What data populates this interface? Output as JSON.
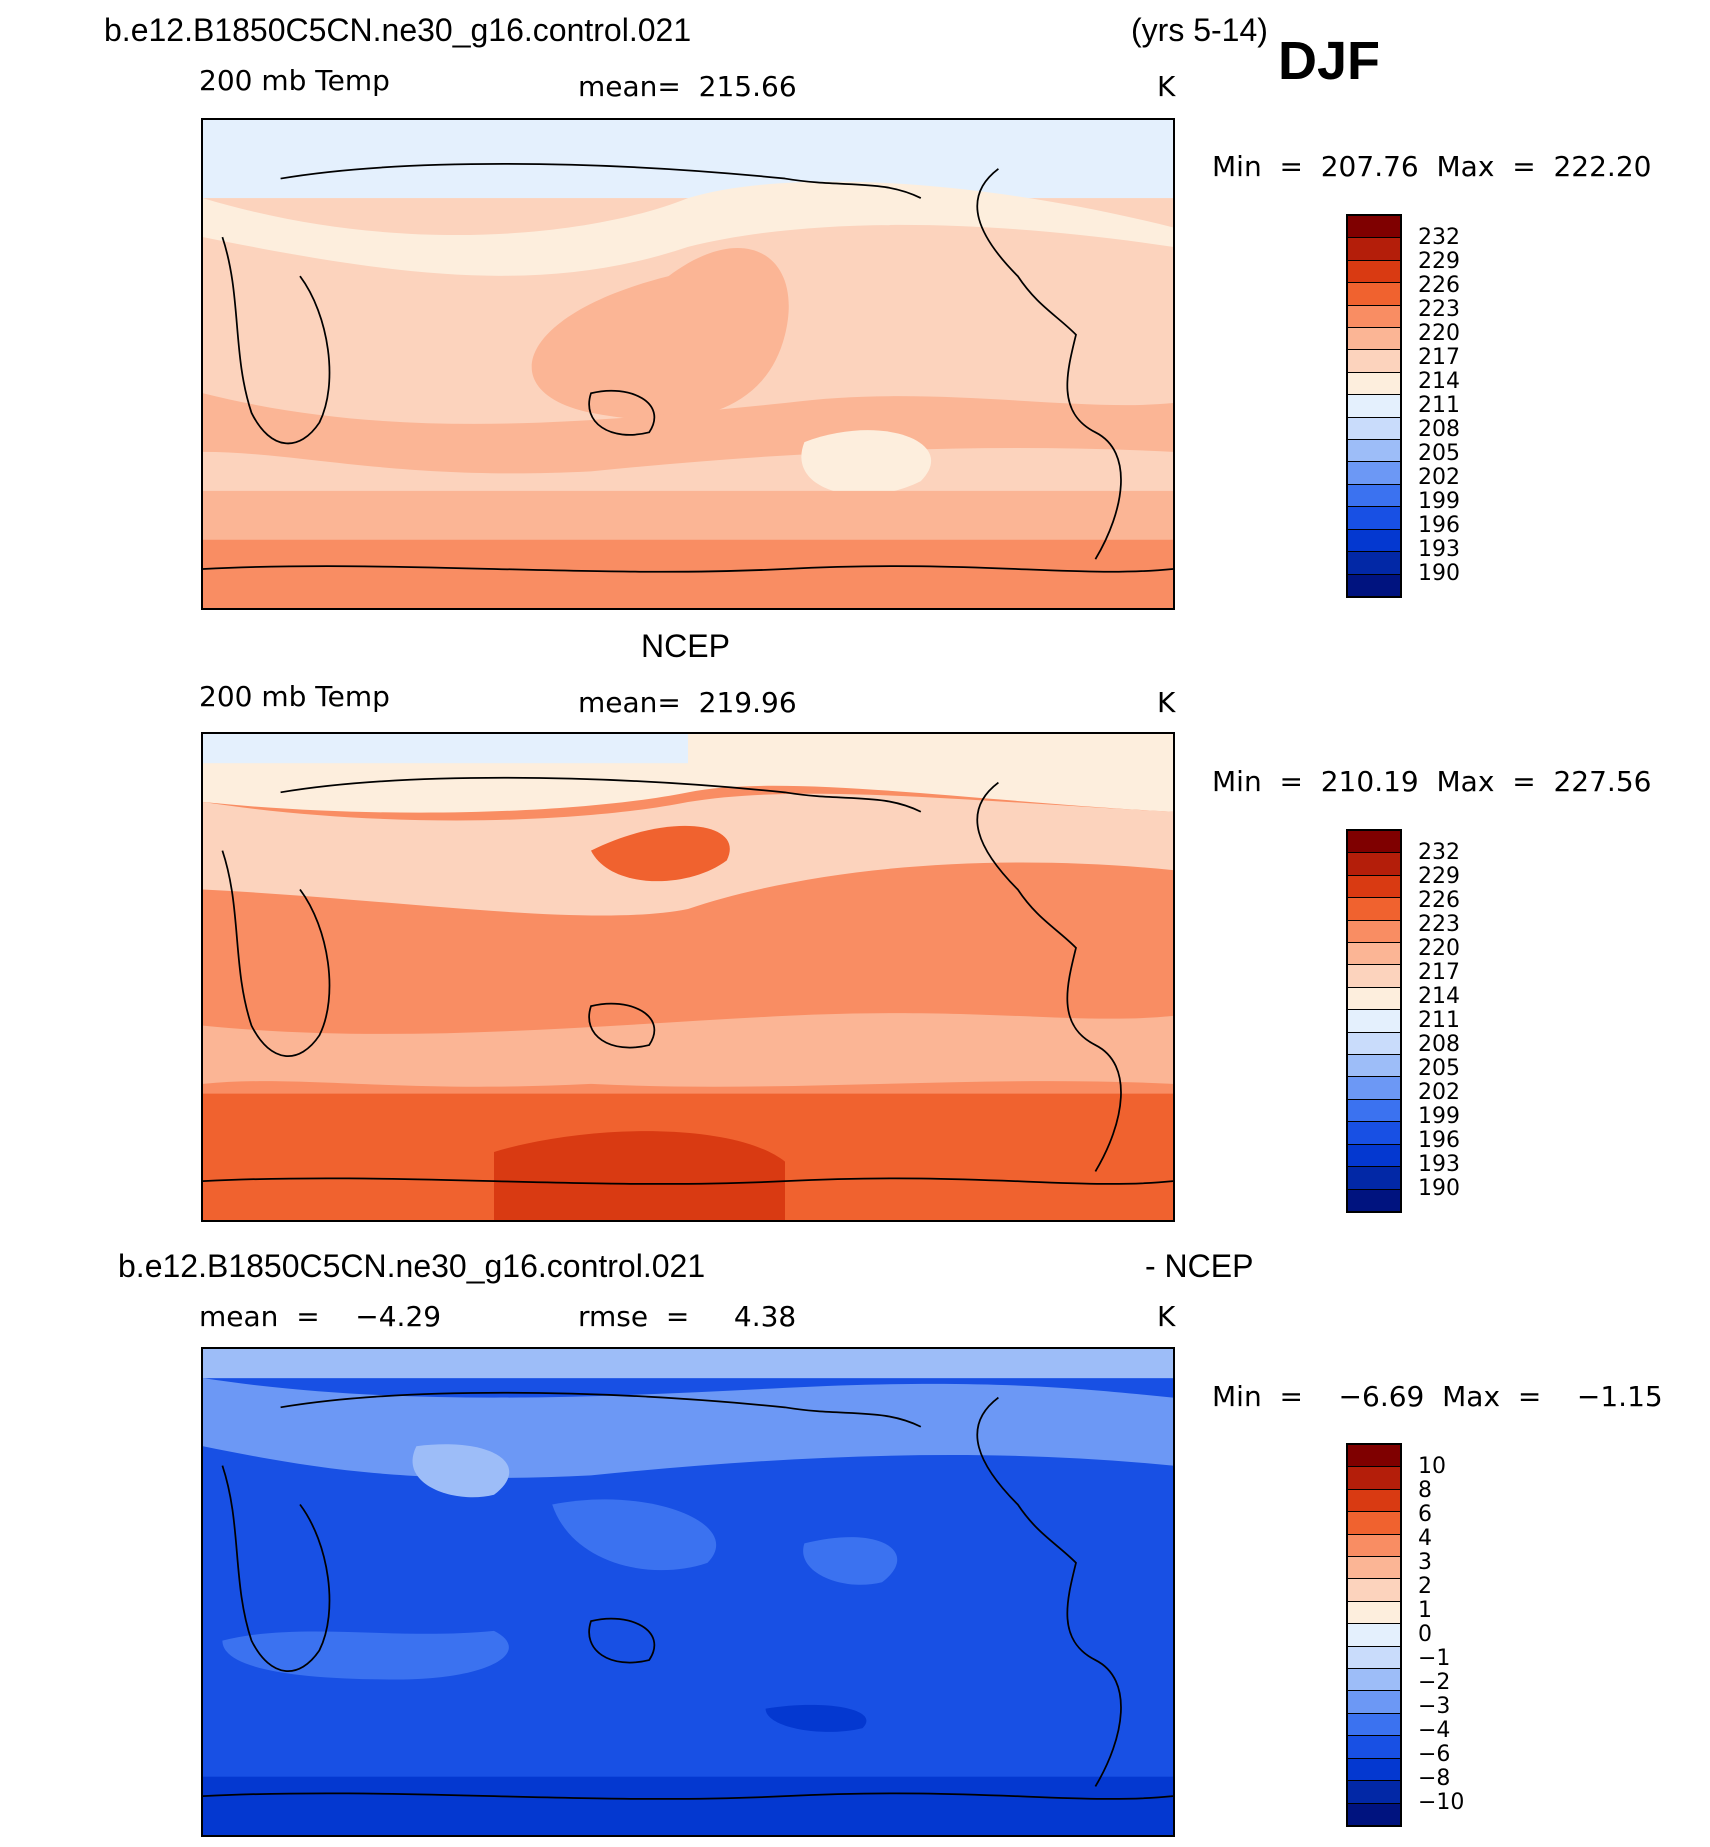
{
  "header": {
    "case_name": "b.e12.B1850C5CN.ne30_g16.control.021",
    "years": "(yrs 5-14)",
    "season": "DJF"
  },
  "colors": {
    "temp_scale": [
      "#00137f",
      "#0228a6",
      "#0438d0",
      "#1850e4",
      "#3b72f0",
      "#6c98f5",
      "#9dbdf8",
      "#c9dcfb",
      "#e4f0fd",
      "#fdeedd",
      "#fcd3bd",
      "#fbb595",
      "#f98d63",
      "#f0622f",
      "#d93a12",
      "#b41e0a",
      "#7f0000"
    ],
    "diff_scale": [
      "#00137f",
      "#0228a6",
      "#0438d0",
      "#1850e4",
      "#3b72f0",
      "#6c98f5",
      "#9dbdf8",
      "#c9dcfb",
      "#e4f0fd",
      "#fdeedd",
      "#fcd3bd",
      "#fbb595",
      "#f98d63",
      "#f0622f",
      "#d93a12",
      "#b41e0a",
      "#7f0000"
    ]
  },
  "chart_data": [
    {
      "type": "heatmap",
      "panel": "model",
      "title": "b.e12.B1850C5CN.ne30_g16.control.021",
      "variable": "200 mb Temp",
      "stat_text": "mean=  215.66",
      "units": "K",
      "minmax_text": "Min  =  207.76  Max  =  222.20",
      "min": 207.76,
      "max": 222.2,
      "mean": 215.66,
      "colorbar_levels": [
        "232",
        "229",
        "226",
        "223",
        "220",
        "217",
        "214",
        "211",
        "208",
        "205",
        "202",
        "199",
        "196",
        "193",
        "190"
      ]
    },
    {
      "type": "heatmap",
      "panel": "obs",
      "title": "NCEP",
      "variable": "200 mb Temp",
      "stat_text": "mean=  219.96",
      "units": "K",
      "minmax_text": "Min  =  210.19  Max  =  227.56",
      "min": 210.19,
      "max": 227.56,
      "mean": 219.96,
      "colorbar_levels": [
        "232",
        "229",
        "226",
        "223",
        "220",
        "217",
        "214",
        "211",
        "208",
        "205",
        "202",
        "199",
        "196",
        "193",
        "190"
      ]
    },
    {
      "type": "heatmap",
      "panel": "difference",
      "title": "b.e12.B1850C5CN.ne30_g16.control.021",
      "title_suffix": "- NCEP",
      "mean_text": "mean  =    −4.29",
      "rmse_text": "rmse  =     4.38",
      "units": "K",
      "minmax_text": "Min  =    −6.69  Max  =    −1.15",
      "min": -6.69,
      "max": -1.15,
      "mean": -4.29,
      "rmse": 4.38,
      "colorbar_levels": [
        "10",
        "8",
        "6",
        "4",
        "3",
        "2",
        "1",
        "0",
        "−1",
        "−2",
        "−3",
        "−4",
        "−6",
        "−8",
        "−10"
      ]
    }
  ]
}
